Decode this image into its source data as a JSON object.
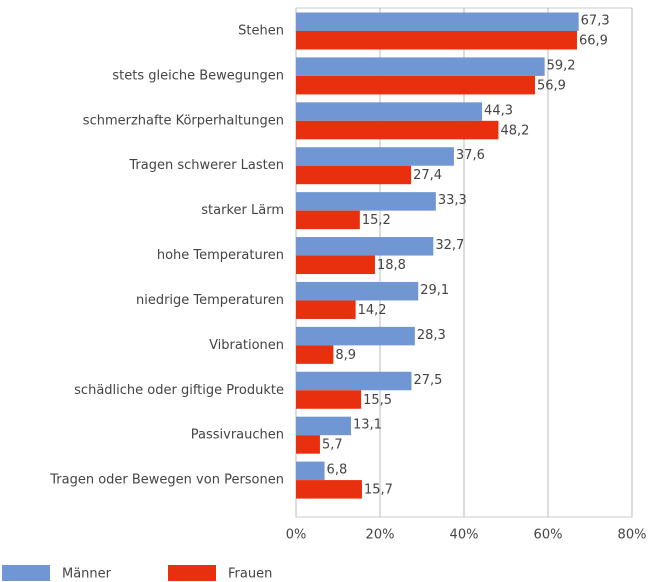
{
  "chart_data": {
    "type": "hbar",
    "categories": [
      "Stehen",
      "stets gleiche Bewegungen",
      "schmerzhafte Körperhaltungen",
      "Tragen schwerer Lasten",
      "starker Lärm",
      "hohe Temperaturen",
      "niedrige Temperaturen",
      "Vibrationen",
      "schädliche oder giftige Produkte",
      "Passivrauchen",
      "Tragen oder Bewegen von Personen"
    ],
    "series": [
      {
        "name": "Männer",
        "color": "#7097d3",
        "values": [
          67.3,
          59.2,
          44.3,
          37.6,
          33.3,
          32.7,
          29.1,
          28.3,
          27.5,
          13.1,
          6.8
        ],
        "value_labels": [
          "67,3",
          "59,2",
          "44,3",
          "37,6",
          "33,3",
          "32,7",
          "29,1",
          "28,3",
          "27,5",
          "13,1",
          "6,8"
        ]
      },
      {
        "name": "Frauen",
        "color": "#e8300e",
        "values": [
          66.9,
          56.9,
          48.2,
          27.4,
          15.2,
          18.8,
          14.2,
          8.9,
          15.5,
          5.7,
          15.7
        ],
        "value_labels": [
          "66,9",
          "56,9",
          "48,2",
          "27,4",
          "15,2",
          "18,8",
          "14,2",
          "8,9",
          "15,5",
          "5,7",
          "15,7"
        ]
      }
    ],
    "xlim": [
      0,
      80
    ],
    "xticks": [
      {
        "value": 0,
        "label": "0%"
      },
      {
        "value": 20,
        "label": "20%"
      },
      {
        "value": 40,
        "label": "40%"
      },
      {
        "value": 60,
        "label": "60%"
      },
      {
        "value": 80,
        "label": "80%"
      }
    ],
    "grid": true,
    "legend": "bottom"
  }
}
